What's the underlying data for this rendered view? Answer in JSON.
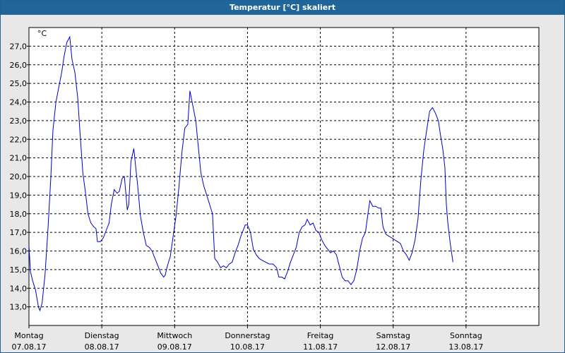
{
  "window": {
    "title": "Temperatur [°C] skaliert"
  },
  "chart_data": {
    "type": "line",
    "title": "Temperatur [°C] skaliert",
    "ylabel": "°C",
    "xlabel": "",
    "ylim": [
      12.0,
      28.0
    ],
    "xlim": [
      0,
      7
    ],
    "grid": true,
    "y_ticks": [
      "13,0",
      "14,0",
      "15,0",
      "16,0",
      "17,0",
      "18,0",
      "19,0",
      "20,0",
      "21,0",
      "22,0",
      "23,0",
      "24,0",
      "25,0",
      "26,0",
      "27,0"
    ],
    "x_ticks": [
      {
        "day": "Montag",
        "date": "07.08.17"
      },
      {
        "day": "Dienstag",
        "date": "08.08.17"
      },
      {
        "day": "Mittwoch",
        "date": "09.08.17"
      },
      {
        "day": "Donnerstag",
        "date": "10.08.17"
      },
      {
        "day": "Freitag",
        "date": "11.08.17"
      },
      {
        "day": "Samstag",
        "date": "12.08.17"
      },
      {
        "day": "Sonntag",
        "date": "13.08.17"
      }
    ],
    "series": [
      {
        "color": "#0000cc",
        "points": [
          [
            0.0,
            16.3
          ],
          [
            0.02,
            14.9
          ],
          [
            0.05,
            14.4
          ],
          [
            0.09,
            13.9
          ],
          [
            0.13,
            13.0
          ],
          [
            0.15,
            12.8
          ],
          [
            0.18,
            13.2
          ],
          [
            0.22,
            14.7
          ],
          [
            0.26,
            17.1
          ],
          [
            0.3,
            19.9
          ],
          [
            0.33,
            22.5
          ],
          [
            0.37,
            24.0
          ],
          [
            0.41,
            24.8
          ],
          [
            0.45,
            25.6
          ],
          [
            0.48,
            26.4
          ],
          [
            0.52,
            27.2
          ],
          [
            0.56,
            27.5
          ],
          [
            0.59,
            26.3
          ],
          [
            0.63,
            25.6
          ],
          [
            0.67,
            24.2
          ],
          [
            0.7,
            22.4
          ],
          [
            0.74,
            20.2
          ],
          [
            0.78,
            19.0
          ],
          [
            0.81,
            18.0
          ],
          [
            0.85,
            17.5
          ],
          [
            0.89,
            17.3
          ],
          [
            0.92,
            17.2
          ],
          [
            0.94,
            16.5
          ],
          [
            0.98,
            16.5
          ],
          [
            1.02,
            16.7
          ],
          [
            1.06,
            17.1
          ],
          [
            1.1,
            17.5
          ],
          [
            1.13,
            18.5
          ],
          [
            1.17,
            19.3
          ],
          [
            1.21,
            19.1
          ],
          [
            1.24,
            19.2
          ],
          [
            1.28,
            19.9
          ],
          [
            1.31,
            20.0
          ],
          [
            1.33,
            19.1
          ],
          [
            1.35,
            18.2
          ],
          [
            1.37,
            18.5
          ],
          [
            1.4,
            20.8
          ],
          [
            1.44,
            21.5
          ],
          [
            1.46,
            20.7
          ],
          [
            1.49,
            19.6
          ],
          [
            1.53,
            17.9
          ],
          [
            1.57,
            17.0
          ],
          [
            1.61,
            16.3
          ],
          [
            1.65,
            16.2
          ],
          [
            1.69,
            16.0
          ],
          [
            1.73,
            15.6
          ],
          [
            1.77,
            15.2
          ],
          [
            1.81,
            14.8
          ],
          [
            1.85,
            14.6
          ],
          [
            1.87,
            14.7
          ],
          [
            1.9,
            15.2
          ],
          [
            1.94,
            15.7
          ],
          [
            1.98,
            16.8
          ],
          [
            2.02,
            17.9
          ],
          [
            2.06,
            19.5
          ],
          [
            2.1,
            21.3
          ],
          [
            2.14,
            22.6
          ],
          [
            2.18,
            22.8
          ],
          [
            2.21,
            24.6
          ],
          [
            2.25,
            23.8
          ],
          [
            2.29,
            23.0
          ],
          [
            2.33,
            21.4
          ],
          [
            2.36,
            20.2
          ],
          [
            2.4,
            19.5
          ],
          [
            2.44,
            19.0
          ],
          [
            2.48,
            18.5
          ],
          [
            2.52,
            18.0
          ],
          [
            2.55,
            15.6
          ],
          [
            2.59,
            15.4
          ],
          [
            2.63,
            15.1
          ],
          [
            2.67,
            15.2
          ],
          [
            2.71,
            15.1
          ],
          [
            2.75,
            15.3
          ],
          [
            2.79,
            15.4
          ],
          [
            2.83,
            15.9
          ],
          [
            2.87,
            16.3
          ],
          [
            2.91,
            16.8
          ],
          [
            2.94,
            17.1
          ],
          [
            2.97,
            17.4
          ],
          [
            3.0,
            17.4
          ],
          [
            3.04,
            17.0
          ],
          [
            3.08,
            16.1
          ],
          [
            3.12,
            15.8
          ],
          [
            3.16,
            15.6
          ],
          [
            3.2,
            15.5
          ],
          [
            3.25,
            15.4
          ],
          [
            3.3,
            15.3
          ],
          [
            3.35,
            15.3
          ],
          [
            3.4,
            15.1
          ],
          [
            3.43,
            14.6
          ],
          [
            3.47,
            14.6
          ],
          [
            3.51,
            14.5
          ],
          [
            3.55,
            14.9
          ],
          [
            3.59,
            15.4
          ],
          [
            3.63,
            15.8
          ],
          [
            3.67,
            16.2
          ],
          [
            3.71,
            17.0
          ],
          [
            3.75,
            17.3
          ],
          [
            3.79,
            17.4
          ],
          [
            3.82,
            17.7
          ],
          [
            3.86,
            17.4
          ],
          [
            3.9,
            17.5
          ],
          [
            3.94,
            17.1
          ],
          [
            3.98,
            17.0
          ],
          [
            4.02,
            16.6
          ],
          [
            4.06,
            16.3
          ],
          [
            4.1,
            16.1
          ],
          [
            4.14,
            15.9
          ],
          [
            4.18,
            16.0
          ],
          [
            4.22,
            15.8
          ],
          [
            4.26,
            15.2
          ],
          [
            4.3,
            14.6
          ],
          [
            4.34,
            14.4
          ],
          [
            4.38,
            14.4
          ],
          [
            4.42,
            14.2
          ],
          [
            4.46,
            14.4
          ],
          [
            4.5,
            15.0
          ],
          [
            4.54,
            16.0
          ],
          [
            4.58,
            16.7
          ],
          [
            4.62,
            17.0
          ],
          [
            4.65,
            17.9
          ],
          [
            4.68,
            18.7
          ],
          [
            4.72,
            18.4
          ],
          [
            4.76,
            18.4
          ],
          [
            4.8,
            18.3
          ],
          [
            4.83,
            18.3
          ],
          [
            4.86,
            17.3
          ],
          [
            4.9,
            16.9
          ],
          [
            4.94,
            16.8
          ],
          [
            4.98,
            16.7
          ],
          [
            5.02,
            16.6
          ],
          [
            5.06,
            16.5
          ],
          [
            5.1,
            16.4
          ],
          [
            5.14,
            16.0
          ],
          [
            5.18,
            15.8
          ],
          [
            5.22,
            15.5
          ],
          [
            5.26,
            15.9
          ],
          [
            5.3,
            16.6
          ],
          [
            5.34,
            17.7
          ],
          [
            5.38,
            19.8
          ],
          [
            5.42,
            21.4
          ],
          [
            5.46,
            22.5
          ],
          [
            5.5,
            23.5
          ],
          [
            5.54,
            23.7
          ],
          [
            5.58,
            23.4
          ],
          [
            5.62,
            23.0
          ],
          [
            5.65,
            22.2
          ],
          [
            5.68,
            21.5
          ],
          [
            5.71,
            20.5
          ],
          [
            5.73,
            18.5
          ],
          [
            5.75,
            17.5
          ],
          [
            5.78,
            16.5
          ],
          [
            5.82,
            15.4
          ]
        ]
      }
    ]
  }
}
